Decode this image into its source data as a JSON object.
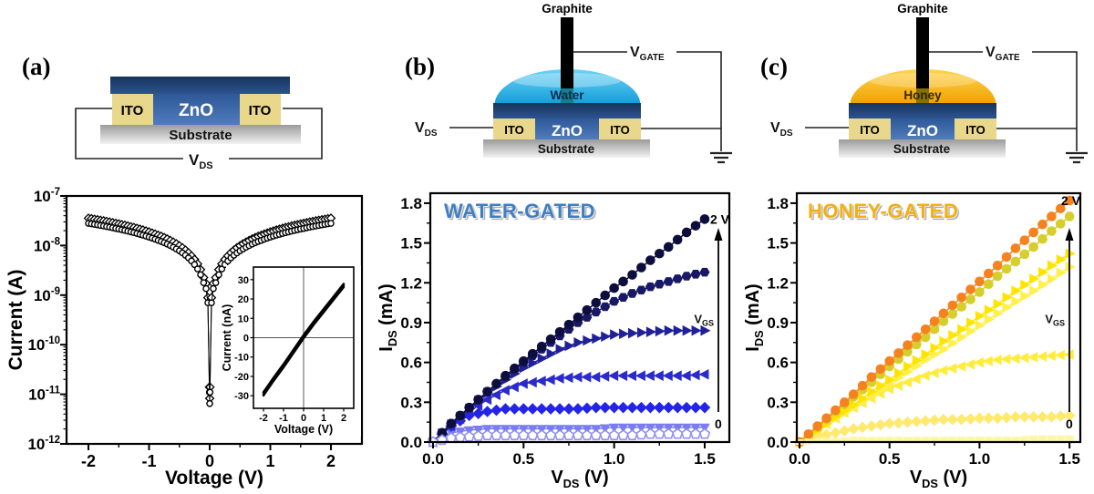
{
  "figure": {
    "panels": [
      {
        "letter": "(a)"
      },
      {
        "letter": "(b)"
      },
      {
        "letter": "(c)"
      }
    ]
  },
  "schematics": {
    "a": {
      "zno": "ZnO",
      "ito": "ITO",
      "substrate": "Substrate",
      "vds": {
        "pre": "V",
        "sub": "DS"
      }
    },
    "b": {
      "graphite": "Graphite",
      "liquid": "Water",
      "zno": "ZnO",
      "ito": "ITO",
      "substrate": "Substrate",
      "vds": {
        "pre": "V",
        "sub": "DS"
      },
      "vgate": {
        "pre": "V",
        "sub": "GATE"
      }
    },
    "c": {
      "graphite": "Graphite",
      "liquid": "Honey",
      "zno": "ZnO",
      "ito": "ITO",
      "substrate": "Substrate",
      "vds": {
        "pre": "V",
        "sub": "DS"
      },
      "vgate": {
        "pre": "V",
        "sub": "GATE"
      }
    }
  },
  "colors": {
    "water_title": "#3f7ec2",
    "honey_title": "#f2b011",
    "water_drop_top": "#6fd2f6",
    "water_drop_bottom": "#0f9ed8",
    "honey_drop_top": "#ffd44d",
    "honey_drop_bottom": "#f0a000",
    "zno_dark_top": "#16345a",
    "zno_dark_bottom": "#2d5391",
    "zno_face_top": "#2e5897",
    "zno_face_bottom": "#4f7cbd",
    "ito": "#e9d78c",
    "substrate_top": "#9b9b9b",
    "substrate_bottom": "#f2f2f2",
    "graphite": "#000000",
    "water_tip": "#157f8d",
    "honey_tip": "#857000",
    "water_liquid_label": "#0d2b4e",
    "honey_liquid_label": "#332600"
  },
  "chart_data": [
    {
      "id": "iv-semilog",
      "type": "scatter",
      "xlabel": "Voltage (V)",
      "ylabel": "Current (A)",
      "xlim": [
        -2.361,
        2.511
      ],
      "ylog": true,
      "ylim_exp": [
        -12,
        -7
      ],
      "x_ticks": [
        [
          "-2",
          -2
        ],
        [
          "-1",
          -1
        ],
        [
          "0",
          0
        ],
        [
          "1",
          1
        ],
        [
          "2",
          2
        ]
      ],
      "x_minor": [
        -1.5,
        -0.5,
        0.5,
        1.5
      ],
      "y_ticks_exp": [
        -7,
        -8,
        -9,
        -10,
        -11,
        -12
      ],
      "mirror_x": true,
      "series": [
        {
          "name": "sweep-diamonds",
          "marker": "diamond-open",
          "color": "#000000",
          "scale": 1.27
        },
        {
          "name": "sweep-circles",
          "marker": "circle-open",
          "color": "#000000",
          "scale": 1.0
        }
      ],
      "base_points": [
        [
          0,
          6.5e-12
        ],
        [
          0.005,
          1.1e-11
        ],
        [
          0.03,
          7e-10
        ],
        [
          0.06,
          1.35e-09
        ],
        [
          0.1,
          1.78e-09
        ],
        [
          0.15,
          2.58e-09
        ],
        [
          0.2,
          3.37e-09
        ],
        [
          0.25,
          4.13e-09
        ],
        [
          0.3,
          4.88e-09
        ],
        [
          0.35,
          5.63e-09
        ],
        [
          0.4,
          6.37e-09
        ],
        [
          0.45,
          7.1e-09
        ],
        [
          0.5,
          7.82e-09
        ],
        [
          0.55,
          8.54e-09
        ],
        [
          0.6,
          9.25e-09
        ],
        [
          0.65,
          9.96e-09
        ],
        [
          0.7,
          1.07e-08
        ],
        [
          0.75,
          1.14e-08
        ],
        [
          0.8,
          1.21e-08
        ],
        [
          0.85,
          1.27e-08
        ],
        [
          0.9,
          1.34e-08
        ],
        [
          0.95,
          1.41e-08
        ],
        [
          1.0,
          1.48e-08
        ],
        [
          1.05,
          1.55e-08
        ],
        [
          1.1,
          1.62e-08
        ],
        [
          1.15,
          1.68e-08
        ],
        [
          1.2,
          1.75e-08
        ],
        [
          1.25,
          1.82e-08
        ],
        [
          1.3,
          1.88e-08
        ],
        [
          1.35,
          1.95e-08
        ],
        [
          1.4,
          2.02e-08
        ],
        [
          1.45,
          2.08e-08
        ],
        [
          1.5,
          2.15e-08
        ],
        [
          1.55,
          2.21e-08
        ],
        [
          1.6,
          2.28e-08
        ],
        [
          1.65,
          2.35e-08
        ],
        [
          1.7,
          2.41e-08
        ],
        [
          1.75,
          2.48e-08
        ],
        [
          1.8,
          2.54e-08
        ],
        [
          1.85,
          2.61e-08
        ],
        [
          1.9,
          2.67e-08
        ],
        [
          1.95,
          2.74e-08
        ],
        [
          2.0,
          2.8e-08
        ]
      ]
    },
    {
      "id": "iv-inset",
      "type": "line",
      "xlabel": "Voltage (V)",
      "ylabel": "Current (nA)",
      "xlim": [
        -2.5,
        2.5
      ],
      "ylim": [
        -36.5,
        36.5
      ],
      "x_ticks": [
        [
          "-2",
          -2
        ],
        [
          "-1",
          -1
        ],
        [
          "0",
          0
        ],
        [
          "1",
          1
        ],
        [
          "2",
          2
        ]
      ],
      "y_ticks": [
        [
          "-30",
          -30
        ],
        [
          "-20",
          -20
        ],
        [
          "-10",
          -10
        ],
        [
          "0",
          0
        ],
        [
          "10",
          10
        ],
        [
          "20",
          20
        ],
        [
          "30",
          30
        ]
      ],
      "points": [
        [
          -2,
          -29
        ],
        [
          -1.5,
          -21.5
        ],
        [
          -1,
          -14.5
        ],
        [
          -0.5,
          -7
        ],
        [
          0,
          0.5
        ],
        [
          0.5,
          7.5
        ],
        [
          1,
          14
        ],
        [
          1.5,
          20.5
        ],
        [
          2,
          27
        ]
      ]
    },
    {
      "id": "water-output",
      "type": "scatter-line",
      "title": "WATER-GATED",
      "xlabel_parts": [
        [
          "V",
          0
        ],
        [
          "DS",
          1
        ],
        [
          " (V)",
          0
        ]
      ],
      "ylabel_parts": [
        [
          "I",
          0
        ],
        [
          "DS",
          1
        ],
        [
          " (mA)",
          0
        ]
      ],
      "xlim": [
        -0.015,
        1.636
      ],
      "ylim": [
        0,
        1.875
      ],
      "x_ticks": [
        [
          "0.0",
          0
        ],
        [
          "0.5",
          0.5
        ],
        [
          "1.0",
          1
        ],
        [
          "1.5",
          1.5
        ]
      ],
      "x_minor": [
        0.25,
        0.75,
        1.25
      ],
      "y_ticks": [
        [
          "0.0",
          0
        ],
        [
          "0.3",
          0.3
        ],
        [
          "0.6",
          0.6
        ],
        [
          "0.9",
          0.9
        ],
        [
          "1.2",
          1.2
        ],
        [
          "1.5",
          1.5
        ],
        [
          "1.8",
          1.8
        ]
      ],
      "y_minor": [
        0.15,
        0.45,
        0.75,
        1.05,
        1.35,
        1.65
      ],
      "x": [
        0,
        0.1,
        0.2,
        0.3,
        0.4,
        0.5,
        0.6,
        0.7,
        0.8,
        0.9,
        1.0,
        1.1,
        1.2,
        1.3,
        1.4,
        1.5
      ],
      "gate_series": [
        {
          "vgs": "2 V",
          "marker": "circle",
          "color": "#0e0e3e",
          "values": [
            0,
            0.14,
            0.26,
            0.38,
            0.5,
            0.61,
            0.72,
            0.83,
            0.94,
            1.05,
            1.16,
            1.26,
            1.37,
            1.47,
            1.58,
            1.68
          ]
        },
        {
          "vgs": "",
          "marker": "hexagon",
          "color": "#181866",
          "values": [
            0,
            0.14,
            0.26,
            0.38,
            0.49,
            0.6,
            0.7,
            0.8,
            0.9,
            0.98,
            1.06,
            1.12,
            1.17,
            1.21,
            1.25,
            1.28
          ]
        },
        {
          "vgs": "",
          "marker": "tri-right",
          "color": "#202099",
          "values": [
            0,
            0.13,
            0.25,
            0.37,
            0.47,
            0.56,
            0.63,
            0.7,
            0.75,
            0.78,
            0.81,
            0.82,
            0.83,
            0.84,
            0.84,
            0.84
          ]
        },
        {
          "vgs": "",
          "marker": "tri-left",
          "color": "#2b2bcc",
          "values": [
            0,
            0.12,
            0.23,
            0.32,
            0.39,
            0.44,
            0.46,
            0.48,
            0.49,
            0.49,
            0.5,
            0.5,
            0.5,
            0.5,
            0.5,
            0.51
          ]
        },
        {
          "vgs": "",
          "marker": "diamond",
          "color": "#2424e8",
          "values": [
            0,
            0.12,
            0.2,
            0.23,
            0.25,
            0.25,
            0.25,
            0.25,
            0.25,
            0.26,
            0.26,
            0.26,
            0.26,
            0.26,
            0.26,
            0.26
          ]
        },
        {
          "vgs": "",
          "marker": "tri-down",
          "color": "#7c7cf2",
          "values": [
            0,
            0.07,
            0.09,
            0.1,
            0.1,
            0.1,
            0.1,
            0.1,
            0.1,
            0.1,
            0.11,
            0.11,
            0.11,
            0.11,
            0.11,
            0.11
          ]
        },
        {
          "vgs": "0",
          "marker": "pentagon-open",
          "color": "#9191ef",
          "values": [
            0,
            0.03,
            0.04,
            0.05,
            0.05,
            0.05,
            0.05,
            0.05,
            0.05,
            0.05,
            0.05,
            0.05,
            0.06,
            0.06,
            0.06,
            0.06
          ]
        }
      ],
      "annotations": {
        "max": "2 V",
        "min": "0",
        "arrow_pre": "V",
        "arrow_sub": "GS"
      }
    },
    {
      "id": "honey-output",
      "type": "scatter-line",
      "title": "HONEY-GATED",
      "xlabel_parts": [
        [
          "V",
          0
        ],
        [
          "DS",
          1
        ],
        [
          " (V)",
          0
        ]
      ],
      "ylabel_parts": [
        [
          "I",
          0
        ],
        [
          "DS",
          1
        ],
        [
          " (mA)",
          0
        ]
      ],
      "xlim": [
        -0.015,
        1.56
      ],
      "ylim": [
        0,
        1.875
      ],
      "x_ticks": [
        [
          "0.0",
          0
        ],
        [
          "0.5",
          0.5
        ],
        [
          "1.0",
          1
        ],
        [
          "1.5",
          1.5
        ]
      ],
      "x_minor": [
        0.25,
        0.75,
        1.25
      ],
      "y_ticks": [
        [
          "0.0",
          0
        ],
        [
          "0.3",
          0.3
        ],
        [
          "0.6",
          0.6
        ],
        [
          "0.9",
          0.9
        ],
        [
          "1.2",
          1.2
        ],
        [
          "1.5",
          1.5
        ],
        [
          "1.8",
          1.8
        ]
      ],
      "y_minor": [
        0.15,
        0.45,
        0.75,
        1.05,
        1.35,
        1.65
      ],
      "x": [
        0,
        0.1,
        0.2,
        0.3,
        0.4,
        0.5,
        0.6,
        0.7,
        0.8,
        0.9,
        1.0,
        1.1,
        1.2,
        1.3,
        1.4,
        1.5
      ],
      "gate_series": [
        {
          "vgs": "2 V",
          "marker": "circle",
          "color": "#f6821f",
          "values": [
            0,
            0.12,
            0.24,
            0.36,
            0.49,
            0.61,
            0.73,
            0.85,
            0.97,
            1.09,
            1.21,
            1.33,
            1.46,
            1.58,
            1.7,
            1.82
          ]
        },
        {
          "vgs": "",
          "marker": "circle",
          "color": "#d6ce2a",
          "values": [
            0,
            0.11,
            0.23,
            0.34,
            0.45,
            0.57,
            0.68,
            0.79,
            0.91,
            1.02,
            1.13,
            1.25,
            1.36,
            1.47,
            1.59,
            1.7
          ]
        },
        {
          "vgs": "",
          "marker": "tri-right",
          "color": "#ffe400",
          "values": [
            0,
            0.09,
            0.19,
            0.28,
            0.38,
            0.47,
            0.57,
            0.66,
            0.76,
            0.85,
            0.95,
            1.04,
            1.14,
            1.23,
            1.33,
            1.42
          ]
        },
        {
          "vgs": "",
          "marker": "tri-right",
          "color": "#fff04a",
          "values": [
            0,
            0.09,
            0.18,
            0.26,
            0.35,
            0.44,
            0.53,
            0.62,
            0.7,
            0.79,
            0.88,
            0.97,
            1.06,
            1.14,
            1.23,
            1.32
          ]
        },
        {
          "vgs": "",
          "marker": "tri-left",
          "color": "#ffec3d",
          "values": [
            0,
            0.09,
            0.18,
            0.26,
            0.33,
            0.4,
            0.45,
            0.5,
            0.54,
            0.57,
            0.6,
            0.62,
            0.63,
            0.64,
            0.65,
            0.66
          ]
        },
        {
          "vgs": "",
          "marker": "diamond",
          "color": "#ffe96e",
          "values": [
            0,
            0.04,
            0.07,
            0.1,
            0.12,
            0.14,
            0.15,
            0.16,
            0.17,
            0.17,
            0.18,
            0.18,
            0.19,
            0.19,
            0.19,
            0.2
          ]
        },
        {
          "vgs": "0",
          "marker": "square",
          "color": "#fbf7a6",
          "values": [
            0,
            0.01,
            0.01,
            0.02,
            0.02,
            0.02,
            0.02,
            0.02,
            0.02,
            0.02,
            0.02,
            0.02,
            0.02,
            0.03,
            0.03,
            0.03
          ]
        }
      ],
      "annotations": {
        "max": "2 V",
        "min": "0",
        "arrow_pre": "V",
        "arrow_sub": "GS"
      }
    }
  ]
}
